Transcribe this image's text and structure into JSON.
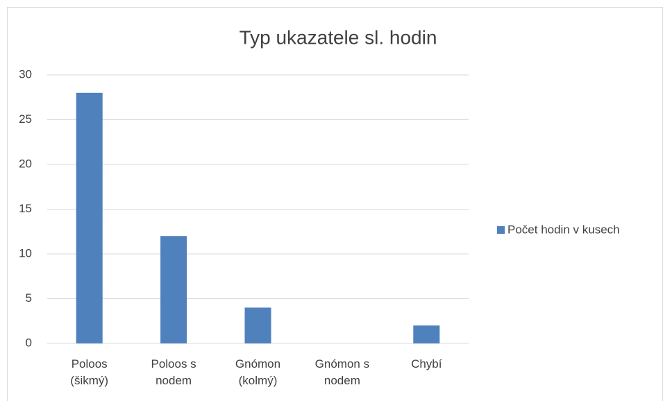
{
  "chart_data": {
    "type": "bar",
    "title": "Typ ukazatele sl. hodin",
    "categories": [
      "Poloos (šikmý)",
      "Poloos s nodem",
      "Gnómon (kolmý)",
      "Gnómon s nodem",
      "Chybí"
    ],
    "series": [
      {
        "name": "Počet hodin v kusech",
        "color": "#4f81bd",
        "values": [
          28,
          12,
          4,
          0,
          2
        ]
      }
    ],
    "ylim": [
      0,
      30
    ],
    "yticks": [
      0,
      5,
      10,
      15,
      20,
      25,
      30
    ],
    "grid": true,
    "legend": "right"
  }
}
